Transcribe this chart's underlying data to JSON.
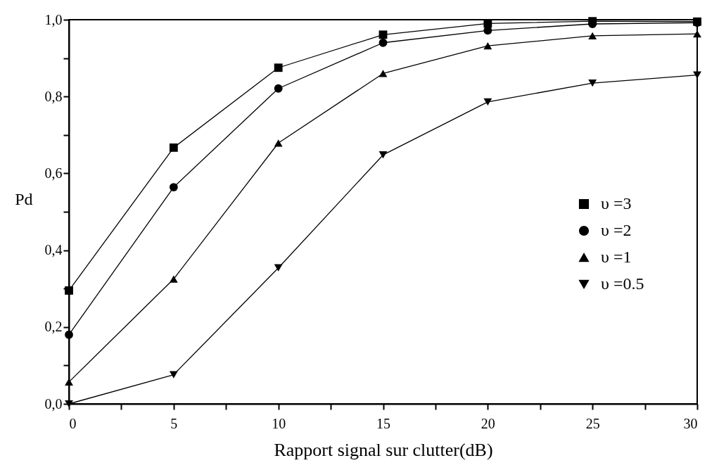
{
  "chart_data": {
    "type": "line",
    "xlabel": "Rapport signal sur clutter(dB)",
    "ylabel": "Pd",
    "x": [
      0,
      5,
      10,
      15,
      20,
      25,
      30
    ],
    "series": [
      {
        "name": "υ =3",
        "color": "#000000",
        "marker": "square",
        "values": [
          0.295,
          0.667,
          0.875,
          0.961,
          0.99,
          0.996,
          0.995
        ]
      },
      {
        "name": "υ =2",
        "color": "#000000",
        "marker": "circle",
        "values": [
          0.18,
          0.564,
          0.821,
          0.94,
          0.972,
          0.989,
          0.992
        ]
      },
      {
        "name": "υ =1",
        "color": "#000000",
        "marker": "triangle",
        "values": [
          0.057,
          0.325,
          0.679,
          0.86,
          0.932,
          0.958,
          0.963
        ]
      },
      {
        "name": "υ =0.5",
        "color": "#000000",
        "marker": "triangle-down",
        "values": [
          0.0,
          0.076,
          0.354,
          0.648,
          0.786,
          0.835,
          0.856
        ]
      }
    ],
    "xlim": [
      0,
      30
    ],
    "ylim": [
      0,
      1
    ],
    "xticks": [
      0,
      {
        "value": 2.5,
        "label": null
      },
      5,
      {
        "value": 7.5,
        "label": null
      },
      10,
      {
        "value": 12.5,
        "label": null
      },
      15,
      {
        "value": 17.5,
        "label": null
      },
      20,
      {
        "value": 22.5,
        "label": null
      },
      25,
      {
        "value": 27.5,
        "label": null
      },
      30
    ],
    "yticks": [
      {
        "value": 0,
        "label": "0,0"
      },
      {
        "value": 0.1,
        "label": null
      },
      {
        "value": 0.2,
        "label": "0,2"
      },
      {
        "value": 0.3,
        "label": null
      },
      {
        "value": 0.4,
        "label": "0,4"
      },
      {
        "value": 0.5,
        "label": null
      },
      {
        "value": 0.6,
        "label": "0,6"
      },
      {
        "value": 0.7,
        "label": null
      },
      {
        "value": 0.8,
        "label": "0,8"
      },
      {
        "value": 0.9,
        "label": null
      },
      {
        "value": 1,
        "label": "1,0"
      }
    ],
    "grid": false,
    "legend": "right",
    "line_style": "solid"
  }
}
